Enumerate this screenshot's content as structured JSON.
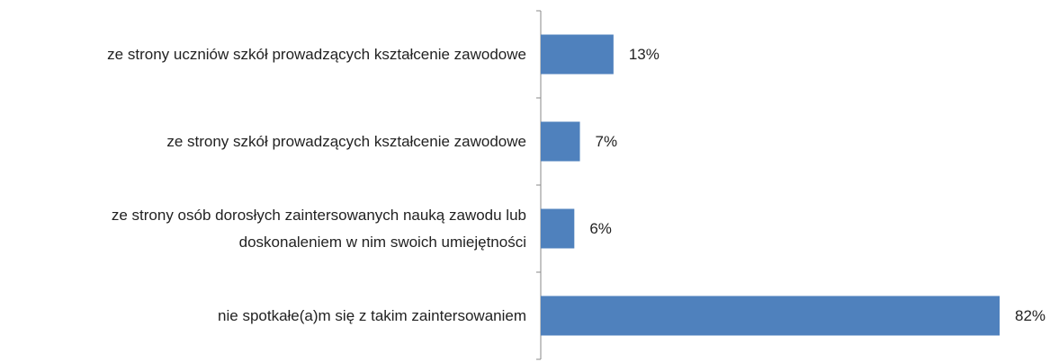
{
  "chart_data": {
    "type": "bar",
    "orientation": "horizontal",
    "categories": [
      "ze strony uczniów szkół prowadzących kształcenie zawodowe",
      "ze strony szkół prowadzących kształcenie zawodowe",
      "ze strony osób dorosłych zaintersowanych nauką zawodu lub doskonaleniem w nim swoich umiejętności",
      "nie spotkałe(a)m się z takim zaintersowaniem"
    ],
    "values": [
      13,
      7,
      6,
      82
    ],
    "value_labels": [
      "13%",
      "7%",
      "6%",
      "82%"
    ],
    "color": "#4f81bd"
  }
}
